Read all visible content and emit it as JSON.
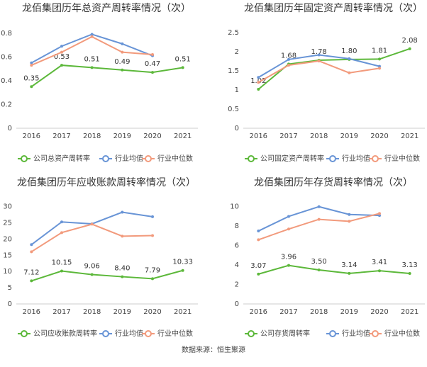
{
  "chart_data": [
    {
      "type": "line",
      "title": "龙佰集团历年总资产周转率情况（次）",
      "categories": [
        "2016",
        "2017",
        "2018",
        "2019",
        "2020",
        "2021"
      ],
      "ylim": [
        0,
        0.9
      ],
      "yticks": [
        0,
        0.2,
        0.4,
        0.6,
        0.8
      ],
      "grid": false,
      "legend": "bottom",
      "series": [
        {
          "name": "公司总资产周转率",
          "color": "#5cb83a",
          "values": [
            0.35,
            0.53,
            0.51,
            0.49,
            0.47,
            0.51
          ],
          "value_labels": [
            "0.35",
            "0.53",
            "0.51",
            "0.49",
            "0.47",
            "0.51"
          ]
        },
        {
          "name": "行业均值",
          "color": "#6894d6",
          "values": [
            0.55,
            0.69,
            0.79,
            0.71,
            0.61,
            null
          ]
        },
        {
          "name": "行业中位数",
          "color": "#f29a7c",
          "values": [
            0.53,
            0.64,
            0.77,
            0.64,
            0.62,
            null
          ]
        }
      ]
    },
    {
      "type": "line",
      "title": "龙佰集团历年固定资产周转率情况（次）",
      "categories": [
        "2016",
        "2017",
        "2018",
        "2019",
        "2020",
        "2021"
      ],
      "ylim": [
        0,
        2.8
      ],
      "yticks": [
        0,
        0.5,
        1,
        1.5,
        2,
        2.5
      ],
      "grid": false,
      "legend": "bottom",
      "series": [
        {
          "name": "公司固定资产周转率",
          "color": "#5cb83a",
          "values": [
            1.02,
            1.68,
            1.78,
            1.8,
            1.81,
            2.08
          ],
          "value_labels": [
            "1.02",
            "1.68",
            "1.78",
            "1.80",
            "1.81",
            "2.08"
          ]
        },
        {
          "name": "行业均值",
          "color": "#6894d6",
          "values": [
            1.33,
            1.8,
            1.92,
            1.82,
            1.62,
            null
          ]
        },
        {
          "name": "行业中位数",
          "color": "#f29a7c",
          "values": [
            1.2,
            1.65,
            1.76,
            1.45,
            1.57,
            null
          ]
        }
      ]
    },
    {
      "type": "line",
      "title": "龙佰集团历年应收账款周转率情况（次）",
      "categories": [
        "2016",
        "2017",
        "2018",
        "2019",
        "2020",
        "2021"
      ],
      "ylim": [
        0,
        33
      ],
      "yticks": [
        0,
        5,
        10,
        15,
        20,
        25,
        30
      ],
      "grid": false,
      "legend": "bottom",
      "series": [
        {
          "name": "公司应收账款周转率",
          "color": "#5cb83a",
          "values": [
            7.12,
            10.15,
            9.06,
            8.4,
            7.79,
            10.33
          ],
          "value_labels": [
            "7.12",
            "10.15",
            "9.06",
            "8.40",
            "7.79",
            "10.33"
          ]
        },
        {
          "name": "行业均值",
          "color": "#6894d6",
          "values": [
            18.3,
            25.3,
            24.7,
            28.3,
            26.9,
            null
          ]
        },
        {
          "name": "行业中位数",
          "color": "#f29a7c",
          "values": [
            16.1,
            22.0,
            24.6,
            20.9,
            21.1,
            null
          ]
        }
      ]
    },
    {
      "type": "line",
      "title": "龙佰集团历年存货周转率情况（次）",
      "categories": [
        "2016",
        "2017",
        "2018",
        "2019",
        "2020",
        "2021"
      ],
      "ylim": [
        0,
        11
      ],
      "yticks": [
        0,
        2,
        4,
        6,
        8,
        10
      ],
      "grid": false,
      "legend": "bottom",
      "series": [
        {
          "name": "公司存货周转率",
          "color": "#5cb83a",
          "values": [
            3.07,
            3.96,
            3.5,
            3.14,
            3.41,
            3.13
          ],
          "value_labels": [
            "3.07",
            "3.96",
            "3.50",
            "3.14",
            "3.41",
            "3.13"
          ]
        },
        {
          "name": "行业均值",
          "color": "#6894d6",
          "values": [
            7.5,
            9.0,
            10.0,
            9.2,
            9.1,
            null
          ]
        },
        {
          "name": "行业中位数",
          "color": "#f29a7c",
          "values": [
            6.6,
            7.7,
            8.7,
            8.5,
            9.3,
            null
          ]
        }
      ]
    }
  ],
  "source": "数据来源：恒生聚源"
}
